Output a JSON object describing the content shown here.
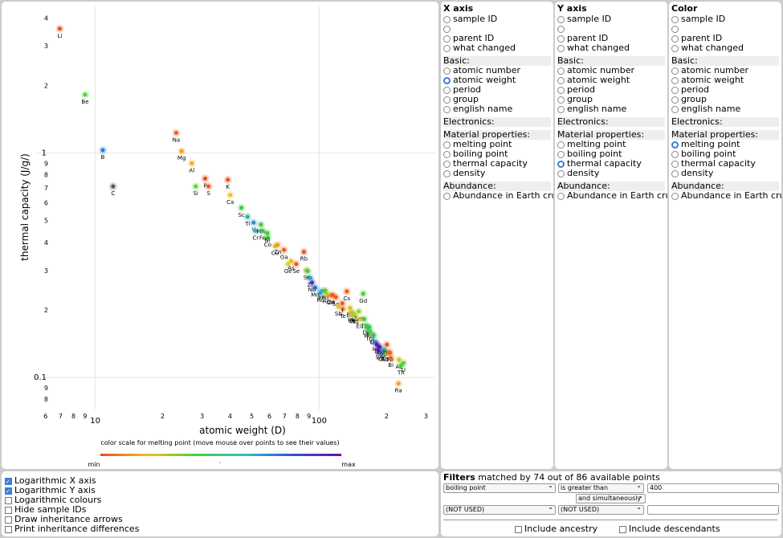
{
  "plot": {
    "colorscale_caption": "color scale for melting point (move mouse over points to see their values)",
    "scale_min": "min",
    "scale_mid": "·",
    "scale_max": "max"
  },
  "x_panel": {
    "title": "X axis",
    "selected": "atomic weight"
  },
  "y_panel": {
    "title": "Y axis",
    "selected": "thermal capacity"
  },
  "color_panel": {
    "title": "Color",
    "selected": "melting point"
  },
  "axis_options": {
    "top": [
      "sample ID",
      "",
      "parent ID",
      "what changed"
    ],
    "basic_header": "Basic:",
    "basic": [
      "atomic number",
      "atomic weight",
      "period",
      "group",
      "english name"
    ],
    "electronics_header": "Electronics:",
    "material_header": "Material properties:",
    "material": [
      "melting point",
      "boiling point",
      "thermal capacity",
      "density"
    ],
    "abundance_header": "Abundance:",
    "abundance": [
      "Abundance in Earth crust"
    ]
  },
  "options": [
    {
      "label": "Logarithmic X axis",
      "checked": true
    },
    {
      "label": "Logarithmic Y axis",
      "checked": true
    },
    {
      "label": "Logarithmic colours",
      "checked": false
    },
    {
      "label": "Hide sample IDs",
      "checked": false
    },
    {
      "label": "Draw inheritance arrows",
      "checked": false
    },
    {
      "label": "Print inheritance differences",
      "checked": false
    }
  ],
  "filters": {
    "title": "Filters",
    "summary": "matched by 74 out of 86 available points",
    "field1": "boiling point",
    "op1": "is greater than",
    "value1": "400",
    "joiner": "and simultaneously",
    "field2": "(NOT USED)",
    "op2": "(NOT USED)",
    "value2": "",
    "include_ancestry": "Include ancestry",
    "include_descendants": "Include descendants"
  },
  "chart_data": {
    "type": "scatter",
    "xlabel": "atomic weight (D)",
    "ylabel": "thermal capacity (J/g/)",
    "x_scale": "log",
    "y_scale": "log",
    "xlim": [
      5.4,
      330
    ],
    "ylim": [
      0.072,
      4.5
    ],
    "x_ticks": [
      {
        "v": 6,
        "t": "6"
      },
      {
        "v": 7,
        "t": "7"
      },
      {
        "v": 8,
        "t": "8"
      },
      {
        "v": 9,
        "t": "9"
      },
      {
        "v": 10,
        "t": "10",
        "major": true
      },
      {
        "v": 20,
        "t": "2"
      },
      {
        "v": 30,
        "t": "3"
      },
      {
        "v": 40,
        "t": "4"
      },
      {
        "v": 50,
        "t": "5"
      },
      {
        "v": 60,
        "t": "6"
      },
      {
        "v": 70,
        "t": "7"
      },
      {
        "v": 80,
        "t": "8"
      },
      {
        "v": 90,
        "t": "9"
      },
      {
        "v": 100,
        "t": "100",
        "major": true
      },
      {
        "v": 200,
        "t": "2"
      },
      {
        "v": 300,
        "t": "3"
      }
    ],
    "y_ticks": [
      {
        "v": 0.08,
        "t": "8"
      },
      {
        "v": 0.09,
        "t": "9"
      },
      {
        "v": 0.1,
        "t": "0.1",
        "major": true
      },
      {
        "v": 0.2,
        "t": "2"
      },
      {
        "v": 0.3,
        "t": "3"
      },
      {
        "v": 0.4,
        "t": "4"
      },
      {
        "v": 0.5,
        "t": "5"
      },
      {
        "v": 0.6,
        "t": "6"
      },
      {
        "v": 0.7,
        "t": "7"
      },
      {
        "v": 0.8,
        "t": "8"
      },
      {
        "v": 0.9,
        "t": "9"
      },
      {
        "v": 1,
        "t": "1",
        "major": true
      },
      {
        "v": 2,
        "t": "2"
      },
      {
        "v": 3,
        "t": "3"
      },
      {
        "v": 4,
        "t": "4"
      }
    ],
    "points": [
      {
        "label": "Li",
        "x": 6.94,
        "y": 3.58,
        "c": "#e8521e"
      },
      {
        "label": "Be",
        "x": 9.01,
        "y": 1.82,
        "c": "#4cd82e"
      },
      {
        "label": "B",
        "x": 10.81,
        "y": 1.03,
        "c": "#2a7fd8"
      },
      {
        "label": "C",
        "x": 12.01,
        "y": 0.71,
        "c": "#555555"
      },
      {
        "label": "Na",
        "x": 22.99,
        "y": 1.23,
        "c": "#ea5f1c"
      },
      {
        "label": "Mg",
        "x": 24.31,
        "y": 1.02,
        "c": "#f0a020"
      },
      {
        "label": "Al",
        "x": 26.98,
        "y": 0.9,
        "c": "#e8b023"
      },
      {
        "label": "Si",
        "x": 28.09,
        "y": 0.71,
        "c": "#5cd830"
      },
      {
        "label": "P",
        "x": 30.97,
        "y": 0.77,
        "c": "#ec4a1a"
      },
      {
        "label": "S",
        "x": 32.07,
        "y": 0.71,
        "c": "#ec5a1c"
      },
      {
        "label": "K",
        "x": 39.1,
        "y": 0.76,
        "c": "#e8501e"
      },
      {
        "label": "Ca",
        "x": 40.08,
        "y": 0.65,
        "c": "#f0c020"
      },
      {
        "label": "Sc",
        "x": 44.96,
        "y": 0.57,
        "c": "#3cc84a"
      },
      {
        "label": "Ti",
        "x": 47.87,
        "y": 0.52,
        "c": "#28b0a0"
      },
      {
        "label": "V",
        "x": 50.94,
        "y": 0.49,
        "c": "#2a90d0"
      },
      {
        "label": "Cr",
        "x": 52.0,
        "y": 0.45,
        "c": "#3ab0c0"
      },
      {
        "label": "Mn",
        "x": 54.94,
        "y": 0.48,
        "c": "#48c838"
      },
      {
        "label": "Fe",
        "x": 55.85,
        "y": 0.45,
        "c": "#40c840"
      },
      {
        "label": "Co",
        "x": 58.93,
        "y": 0.42,
        "c": "#44c83a"
      },
      {
        "label": "Ni",
        "x": 58.69,
        "y": 0.44,
        "c": "#44c83a"
      },
      {
        "label": "Cu",
        "x": 63.55,
        "y": 0.385,
        "c": "#c8c020"
      },
      {
        "label": "Zn",
        "x": 65.38,
        "y": 0.39,
        "c": "#f09a22"
      },
      {
        "label": "Ga",
        "x": 69.72,
        "y": 0.37,
        "c": "#ec5a1c"
      },
      {
        "label": "Ge",
        "x": 72.63,
        "y": 0.32,
        "c": "#d8d020"
      },
      {
        "label": "As",
        "x": 74.92,
        "y": 0.33,
        "c": "#e0c020"
      },
      {
        "label": "Se",
        "x": 78.97,
        "y": 0.32,
        "c": "#ec5a1c"
      },
      {
        "label": "Rb",
        "x": 85.47,
        "y": 0.363,
        "c": "#e8501e"
      },
      {
        "label": "Sr",
        "x": 87.62,
        "y": 0.3,
        "c": "#a8d028"
      },
      {
        "label": "Y",
        "x": 88.91,
        "y": 0.298,
        "c": "#5cc840"
      },
      {
        "label": "Zr",
        "x": 91.22,
        "y": 0.278,
        "c": "#28a8b0"
      },
      {
        "label": "Nb",
        "x": 92.91,
        "y": 0.265,
        "c": "#5030c0"
      },
      {
        "label": "Mo",
        "x": 95.95,
        "y": 0.251,
        "c": "#2a68d8"
      },
      {
        "label": "Ru",
        "x": 101.07,
        "y": 0.238,
        "c": "#2a90d0"
      },
      {
        "label": "Rh",
        "x": 102.91,
        "y": 0.243,
        "c": "#3ab0c0"
      },
      {
        "label": "Pd",
        "x": 106.42,
        "y": 0.244,
        "c": "#48c838"
      },
      {
        "label": "Ag",
        "x": 107.87,
        "y": 0.235,
        "c": "#c8c020"
      },
      {
        "label": "Cd",
        "x": 112.41,
        "y": 0.232,
        "c": "#f09a22"
      },
      {
        "label": "In",
        "x": 114.82,
        "y": 0.233,
        "c": "#ec5a1c"
      },
      {
        "label": "Sn",
        "x": 118.71,
        "y": 0.228,
        "c": "#ec5a1c"
      },
      {
        "label": "Sb",
        "x": 121.76,
        "y": 0.207,
        "c": "#e8c020"
      },
      {
        "label": "Te",
        "x": 127.6,
        "y": 0.202,
        "c": "#ec7a1c"
      },
      {
        "label": "I",
        "x": 126.9,
        "y": 0.214,
        "c": "#ec5a1c"
      },
      {
        "label": "Cs",
        "x": 132.91,
        "y": 0.242,
        "c": "#ea5a1c"
      },
      {
        "label": "Ba",
        "x": 137.33,
        "y": 0.204,
        "c": "#d8c020"
      },
      {
        "label": "La",
        "x": 138.91,
        "y": 0.195,
        "c": "#c8c820"
      },
      {
        "label": "Ce",
        "x": 140.12,
        "y": 0.192,
        "c": "#d0c020"
      },
      {
        "label": "Pr",
        "x": 140.91,
        "y": 0.193,
        "c": "#b8c820"
      },
      {
        "label": "Nd",
        "x": 144.24,
        "y": 0.19,
        "c": "#a8d028"
      },
      {
        "label": "Sm",
        "x": 150.36,
        "y": 0.197,
        "c": "#9ad02a"
      },
      {
        "label": "Eu",
        "x": 151.96,
        "y": 0.182,
        "c": "#d0c020"
      },
      {
        "label": "Gd",
        "x": 157.25,
        "y": 0.236,
        "c": "#50c840"
      },
      {
        "label": "Tb",
        "x": 158.93,
        "y": 0.182,
        "c": "#50c840"
      },
      {
        "label": "Dy",
        "x": 162.5,
        "y": 0.17,
        "c": "#48c840"
      },
      {
        "label": "Ho",
        "x": 164.93,
        "y": 0.165,
        "c": "#40c84a"
      },
      {
        "label": "Er",
        "x": 167.26,
        "y": 0.168,
        "c": "#3ac850"
      },
      {
        "label": "Tm",
        "x": 168.93,
        "y": 0.16,
        "c": "#38c858"
      },
      {
        "label": "Yb",
        "x": 173.05,
        "y": 0.155,
        "c": "#b8c820"
      },
      {
        "label": "Lu",
        "x": 174.97,
        "y": 0.154,
        "c": "#30c070"
      },
      {
        "label": "Hf",
        "x": 178.49,
        "y": 0.144,
        "c": "#2a90d0"
      },
      {
        "label": "Ta",
        "x": 180.95,
        "y": 0.14,
        "c": "#5020b8"
      },
      {
        "label": "W",
        "x": 183.84,
        "y": 0.132,
        "c": "#6a10a8"
      },
      {
        "label": "Re",
        "x": 186.21,
        "y": 0.137,
        "c": "#6018b0"
      },
      {
        "label": "Os",
        "x": 190.23,
        "y": 0.13,
        "c": "#4020c0"
      },
      {
        "label": "Ir",
        "x": 192.22,
        "y": 0.131,
        "c": "#2a60d8"
      },
      {
        "label": "Pt",
        "x": 195.08,
        "y": 0.133,
        "c": "#30b8a0"
      },
      {
        "label": "Au",
        "x": 196.97,
        "y": 0.129,
        "c": "#3cc850"
      },
      {
        "label": "Hg",
        "x": 200.59,
        "y": 0.14,
        "c": "#e8501e"
      },
      {
        "label": "Tl",
        "x": 204.38,
        "y": 0.129,
        "c": "#e8801e"
      },
      {
        "label": "Pb",
        "x": 207.2,
        "y": 0.129,
        "c": "#ec6a1c"
      },
      {
        "label": "Bi",
        "x": 208.98,
        "y": 0.122,
        "c": "#ec5a1c"
      },
      {
        "label": "Ac",
        "x": 227.0,
        "y": 0.12,
        "c": "#c8c820"
      },
      {
        "label": "Th",
        "x": 232.04,
        "y": 0.113,
        "c": "#40c850"
      },
      {
        "label": "U",
        "x": 238.03,
        "y": 0.116,
        "c": "#70c838"
      },
      {
        "label": "Ra",
        "x": 226.0,
        "y": 0.094,
        "c": "#f0a020"
      }
    ]
  }
}
